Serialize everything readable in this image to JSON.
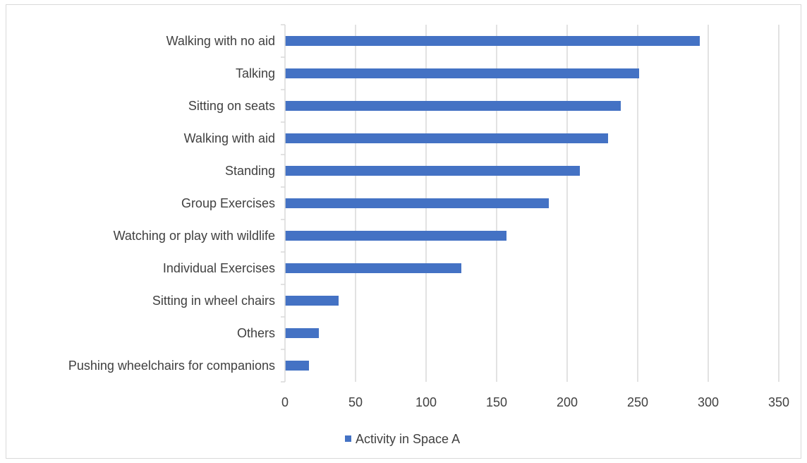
{
  "chart_data": {
    "type": "bar",
    "orientation": "horizontal",
    "title": "",
    "xlabel": "",
    "ylabel": "",
    "categories": [
      "Walking with no aid",
      "Talking",
      "Sitting on seats",
      "Walking with aid",
      "Standing",
      "Group Exercises",
      "Watching or play  with wildlife",
      "Individual Exercises",
      "Sitting in wheel chairs",
      "Others",
      "Pushing wheelchairs for companions"
    ],
    "series": [
      {
        "name": "Activity in Space A",
        "values": [
          294,
          251,
          238,
          229,
          209,
          187,
          157,
          125,
          38,
          24,
          17
        ],
        "color": "#4472c4"
      }
    ],
    "xlim": [
      0,
      350
    ],
    "xticks": [
      0,
      50,
      100,
      150,
      200,
      250,
      300,
      350
    ],
    "grid": "vertical",
    "legend": "bottom"
  }
}
